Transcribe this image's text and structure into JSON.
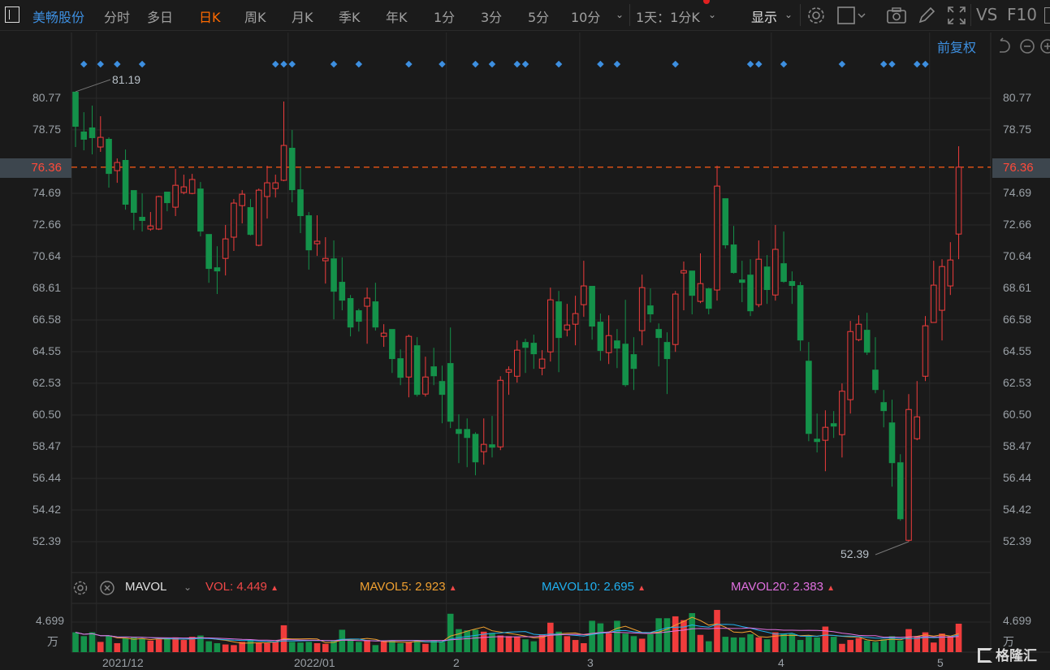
{
  "toolbar": {
    "stock_name": "美畅股份",
    "periods": [
      "分时",
      "多日",
      "日K",
      "周K",
      "月K",
      "季K",
      "年K",
      "1分",
      "3分",
      "5分",
      "10分"
    ],
    "active_period": "日K",
    "multi_period": "1天：1分K",
    "display_label": "显示",
    "vs_label": "VS",
    "f10_label": "F10"
  },
  "adjust_label": "前复权",
  "price_axis": {
    "ticks": [
      "80.77",
      "78.75",
      "76.36",
      "74.69",
      "72.66",
      "70.64",
      "68.61",
      "66.58",
      "64.55",
      "62.53",
      "60.50",
      "58.47",
      "56.44",
      "54.42",
      "52.39"
    ],
    "tick_values": [
      80.77,
      78.75,
      74.69,
      72.66,
      70.64,
      68.61,
      66.58,
      64.55,
      62.53,
      60.5,
      58.47,
      56.44,
      54.42,
      52.39
    ],
    "current_price": "76.36"
  },
  "annotations": {
    "high": "81.19",
    "low": "52.39"
  },
  "indicator": {
    "name": "MAVOL",
    "vol": "VOL: 4.449",
    "mavol5": "MAVOL5: 2.923",
    "mavol10": "MAVOL10: 2.695",
    "mavol20": "MAVOL20: 2.383",
    "up_arrow": "▲"
  },
  "volume_axis": {
    "tick": "4.699",
    "unit": "万"
  },
  "date_axis": [
    "2021/12",
    "2022/01",
    "2",
    "3",
    "4",
    "5"
  ],
  "watermark": "格隆汇",
  "colors": {
    "up": "#f03c3c",
    "down": "#14924a",
    "accent": "#3d8fe0",
    "active": "#ff6a00",
    "ma5": "#f0a030",
    "ma10": "#20b0f0",
    "ma20": "#e070e0",
    "current_line": "#ff5a14",
    "marker": "#3d8fe0"
  },
  "icons": [
    "gear-icon",
    "square-icon",
    "camera-icon",
    "pencil-icon",
    "fullscreen-icon",
    "undo-icon",
    "zoom-out-icon",
    "zoom-in-icon",
    "close-circle-icon",
    "chevron-down-icon"
  ],
  "chart_data": {
    "type": "candlestick",
    "ylim": [
      52.39,
      80.77
    ],
    "grid": true,
    "ohlc": [
      [
        81.19,
        81.19,
        77.65,
        78.95
      ],
      [
        78.64,
        79.88,
        77.44,
        78.12
      ],
      [
        78.9,
        80.3,
        77.18,
        78.22
      ],
      [
        77.65,
        79.62,
        77.34,
        78.27
      ],
      [
        78.17,
        78.27,
        75.05,
        75.93
      ],
      [
        76.14,
        76.92,
        75.36,
        76.66
      ],
      [
        76.82,
        77.49,
        73.64,
        73.96
      ],
      [
        74.89,
        74.89,
        72.34,
        73.44
      ],
      [
        73.18,
        74.68,
        72.24,
        72.92
      ],
      [
        72.4,
        73.49,
        72.29,
        72.6
      ],
      [
        72.4,
        74.53,
        72.34,
        74.48
      ],
      [
        74.79,
        74.79,
        73.54,
        74.06
      ],
      [
        73.8,
        76.24,
        73.23,
        75.2
      ],
      [
        74.74,
        75.88,
        74.63,
        75.1
      ],
      [
        74.68,
        75.93,
        74.63,
        75.57
      ],
      [
        74.99,
        75.41,
        71.93,
        72.24
      ],
      [
        72.08,
        72.08,
        68.96,
        69.85
      ],
      [
        69.95,
        71.3,
        68.24,
        69.69
      ],
      [
        70.52,
        72.66,
        69.43,
        71.77
      ],
      [
        71.88,
        74.32,
        71.0,
        74.06
      ],
      [
        73.9,
        74.89,
        72.76,
        74.63
      ],
      [
        73.8,
        74.32,
        71.98,
        72.03
      ],
      [
        71.36,
        74.99,
        71.3,
        74.89
      ],
      [
        74.48,
        76.45,
        73.07,
        75.36
      ],
      [
        74.99,
        75.88,
        74.42,
        75.36
      ],
      [
        75.52,
        80.56,
        75.46,
        77.75
      ],
      [
        77.6,
        78.74,
        74.11,
        74.89
      ],
      [
        74.94,
        76.3,
        72.14,
        73.23
      ],
      [
        73.28,
        73.49,
        69.8,
        71.04
      ],
      [
        71.46,
        73.28,
        70.68,
        71.62
      ],
      [
        70.37,
        71.88,
        68.91,
        70.52
      ],
      [
        70.52,
        71.67,
        66.62,
        68.39
      ],
      [
        69.02,
        70.58,
        67.2,
        67.82
      ],
      [
        67.98,
        68.18,
        65.53,
        66.1
      ],
      [
        67.2,
        67.3,
        65.84,
        66.47
      ],
      [
        67.46,
        68.65,
        65.06,
        67.98
      ],
      [
        67.77,
        68.96,
        65.9,
        66.1
      ],
      [
        65.53,
        66.31,
        64.86,
        65.74
      ],
      [
        66.0,
        66.0,
        63.19,
        64.08
      ],
      [
        64.13,
        64.7,
        62.41,
        62.88
      ],
      [
        62.93,
        65.64,
        61.63,
        65.53
      ],
      [
        64.96,
        65.48,
        61.68,
        61.79
      ],
      [
        61.84,
        64.23,
        61.68,
        62.93
      ],
      [
        63.61,
        64.8,
        62.41,
        62.98
      ],
      [
        62.67,
        63.66,
        59.97,
        61.79
      ],
      [
        63.82,
        66.1,
        59.66,
        60.07
      ],
      [
        59.6,
        60.54,
        57.42,
        59.29
      ],
      [
        59.6,
        60.28,
        57.16,
        59.03
      ],
      [
        59.29,
        59.39,
        56.64,
        57.47
      ],
      [
        58.15,
        60.28,
        57.32,
        58.62
      ],
      [
        58.62,
        60.44,
        57.78,
        58.41
      ],
      [
        58.46,
        62.98,
        58.25,
        62.72
      ],
      [
        63.24,
        63.61,
        61.79,
        63.4
      ],
      [
        62.98,
        65.27,
        62.57,
        64.65
      ],
      [
        65.17,
        65.38,
        63.19,
        64.8
      ],
      [
        65.12,
        65.64,
        63.45,
        64.39
      ],
      [
        63.5,
        64.65,
        63.04,
        64.08
      ],
      [
        64.54,
        68.65,
        63.92,
        67.87
      ],
      [
        67.77,
        68.44,
        63.24,
        65.43
      ],
      [
        65.95,
        67.61,
        65.53,
        66.26
      ],
      [
        66.31,
        68.13,
        64.96,
        66.99
      ],
      [
        67.56,
        70.37,
        66.78,
        68.76
      ],
      [
        68.76,
        68.76,
        65.32,
        66.16
      ],
      [
        66.47,
        66.99,
        63.97,
        64.6
      ],
      [
        64.49,
        66.88,
        63.76,
        65.58
      ],
      [
        65.27,
        66.0,
        63.5,
        64.75
      ],
      [
        65.06,
        67.87,
        62.31,
        62.41
      ],
      [
        64.39,
        65.48,
        62.1,
        63.45
      ],
      [
        65.9,
        69.48,
        64.96,
        68.65
      ],
      [
        67.51,
        68.6,
        66.42,
        66.94
      ],
      [
        66.0,
        66.36,
        63.61,
        65.43
      ],
      [
        65.17,
        65.79,
        61.84,
        64.08
      ],
      [
        65.01,
        68.44,
        64.54,
        68.24
      ],
      [
        69.59,
        70.32,
        67.2,
        69.74
      ],
      [
        69.74,
        69.74,
        66.94,
        68.13
      ],
      [
        67.77,
        70.84,
        67.66,
        68.91
      ],
      [
        68.6,
        68.65,
        66.94,
        67.3
      ],
      [
        68.5,
        76.45,
        67.82,
        75.15
      ],
      [
        74.37,
        74.37,
        71.15,
        71.36
      ],
      [
        71.41,
        72.6,
        69.54,
        69.59
      ],
      [
        69.17,
        70.37,
        67.72,
        68.96
      ],
      [
        69.48,
        70.47,
        66.83,
        67.14
      ],
      [
        67.56,
        71.67,
        67.4,
        70.47
      ],
      [
        70.0,
        70.73,
        67.61,
        68.5
      ],
      [
        68.18,
        72.66,
        67.82,
        71.1
      ],
      [
        70.21,
        72.24,
        68.96,
        69.02
      ],
      [
        69.07,
        69.69,
        67.61,
        68.76
      ],
      [
        68.81,
        69.02,
        64.6,
        65.27
      ],
      [
        63.97,
        65.17,
        58.82,
        59.29
      ],
      [
        58.98,
        60.59,
        58.1,
        58.77
      ],
      [
        58.88,
        60.8,
        56.9,
        59.71
      ],
      [
        59.97,
        60.75,
        59.03,
        59.76
      ],
      [
        59.24,
        62.52,
        57.78,
        62.02
      ],
      [
        61.48,
        66.52,
        60.59,
        65.84
      ],
      [
        65.32,
        66.88,
        65.22,
        66.31
      ],
      [
        65.95,
        67.04,
        64.34,
        64.49
      ],
      [
        63.4,
        65.48,
        61.89,
        62.1
      ],
      [
        61.32,
        62.1,
        59.71,
        60.75
      ],
      [
        60.02,
        61.48,
        55.91,
        57.42
      ],
      [
        57.47,
        57.99,
        53.73,
        53.83
      ],
      [
        52.48,
        61.84,
        52.39,
        60.85
      ],
      [
        58.98,
        62.67,
        58.88,
        60.38
      ],
      [
        62.98,
        66.83,
        62.67,
        66.21
      ],
      [
        66.42,
        70.37,
        66.42,
        68.81
      ],
      [
        67.2,
        70.47,
        65.27,
        70.0
      ],
      [
        68.76,
        71.56,
        68.18,
        70.42
      ],
      [
        72.08,
        77.7,
        70.47,
        76.36
      ]
    ],
    "volume": [
      3.1,
      2.5,
      3.1,
      1.6,
      2.6,
      1.4,
      2.2,
      2.3,
      2.1,
      1.8,
      2.0,
      2.1,
      2.3,
      1.9,
      2.4,
      2.6,
      1.7,
      1.4,
      1.2,
      1.1,
      1.6,
      1.9,
      1.5,
      1.4,
      1.6,
      4.2,
      1.6,
      1.5,
      1.6,
      1.4,
      1.3,
      1.8,
      3.5,
      1.9,
      1.6,
      1.9,
      1.1,
      1.7,
      1.8,
      1.4,
      1.6,
      1.9,
      1.3,
      1.8,
      1.6,
      6.0,
      3.6,
      3.4,
      3.5,
      3.2,
      3.0,
      2.6,
      2.5,
      2.4,
      2.0,
      1.7,
      2.8,
      4.6,
      3.2,
      2.5,
      1.9,
      1.4,
      4.9,
      4.5,
      3.0,
      4.9,
      2.9,
      2.5,
      2.1,
      2.8,
      5.3,
      5.3,
      5.6,
      5.0,
      6.1,
      2.7,
      1.7,
      6.6,
      2.4,
      2.3,
      2.3,
      2.8,
      2.3,
      2.0,
      3.1,
      2.9,
      2.9,
      1.9,
      2.4,
      2.3,
      4.0,
      2.4,
      1.3,
      1.9,
      2.2,
      1.8,
      1.6,
      2.0,
      2.5,
      1.8,
      3.6,
      2.5,
      3.1,
      1.5,
      2.9,
      2.5,
      4.449
    ],
    "volume_unit": "万",
    "event_marker_candles": [
      2,
      4,
      6,
      9,
      25,
      26,
      27,
      32,
      35,
      41,
      45,
      49,
      51,
      54,
      55,
      59,
      64,
      66,
      73,
      82,
      83,
      86,
      93,
      98,
      99,
      102,
      103
    ],
    "month_start_candles": {
      "2021/12": 4,
      "2022/01": 27,
      "2": 46,
      "3": 62,
      "4": 85,
      "5": 104
    }
  }
}
